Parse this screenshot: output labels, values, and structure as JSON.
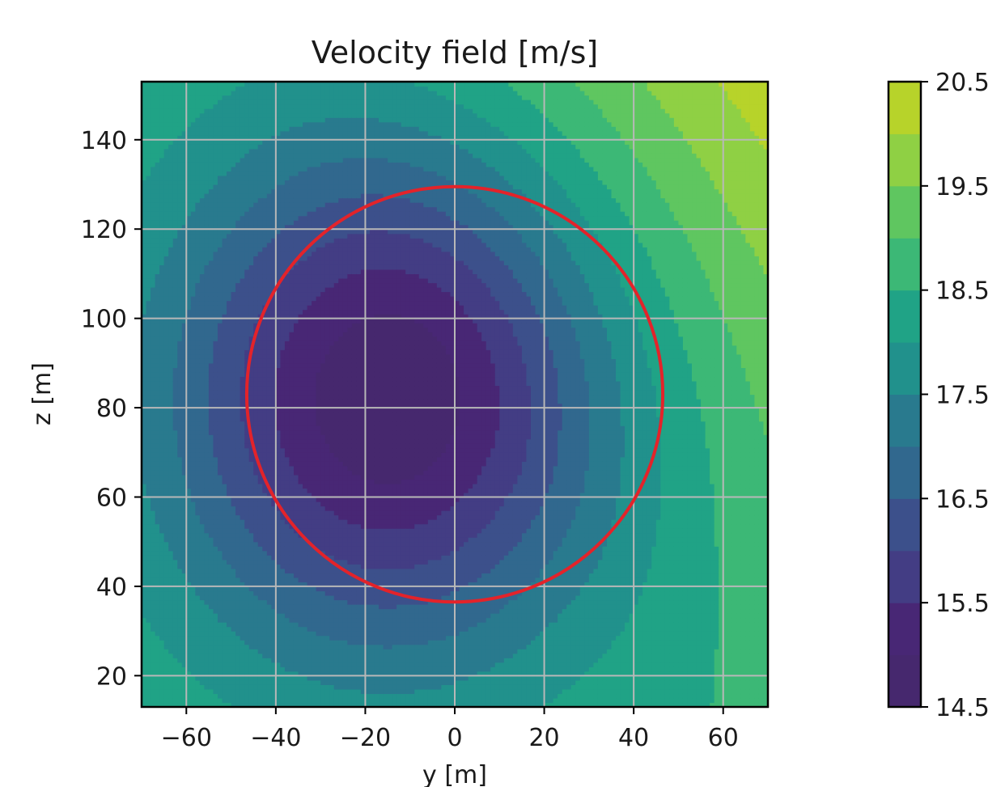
{
  "chart_data": {
    "type": "heatmap",
    "subtype": "filled-contour",
    "title": "Velocity field [m/s]",
    "xlabel": "y [m]",
    "ylabel": "z [m]",
    "xlim": [
      -70,
      70
    ],
    "ylim": [
      13,
      153
    ],
    "xticks": [
      -60,
      -40,
      -20,
      0,
      20,
      40,
      60
    ],
    "yticks": [
      20,
      40,
      60,
      80,
      100,
      120,
      140
    ],
    "grid": true,
    "colormap": "viridis",
    "colorbar": {
      "range": [
        14.5,
        20.5
      ],
      "levels": [
        14.5,
        15.0,
        15.5,
        16.0,
        16.5,
        17.0,
        17.5,
        18.0,
        18.5,
        19.0,
        19.5,
        20.0,
        20.5
      ],
      "ticks": [
        14.5,
        15.5,
        16.5,
        17.5,
        18.5,
        19.5,
        20.5
      ],
      "tick_labels": [
        "14.5",
        "15.5",
        "16.5",
        "17.5",
        "18.5",
        "19.5",
        "20.5"
      ],
      "band_colors": [
        "#46286e",
        "#482775",
        "#433d84",
        "#3c508b",
        "#31688e",
        "#297a8e",
        "#21918c",
        "#20a386",
        "#3cb876",
        "#5fc660",
        "#8fd044",
        "#b7d32a",
        "#e6e21e"
      ]
    },
    "field": {
      "deficit_center": [
        -15,
        82
      ],
      "min_value": 14.6,
      "background_value": 18.6,
      "top_right_max": 20.3
    },
    "rotor_circle": {
      "center": [
        0,
        83
      ],
      "radius": 46.5,
      "color": "#e3232a"
    }
  }
}
